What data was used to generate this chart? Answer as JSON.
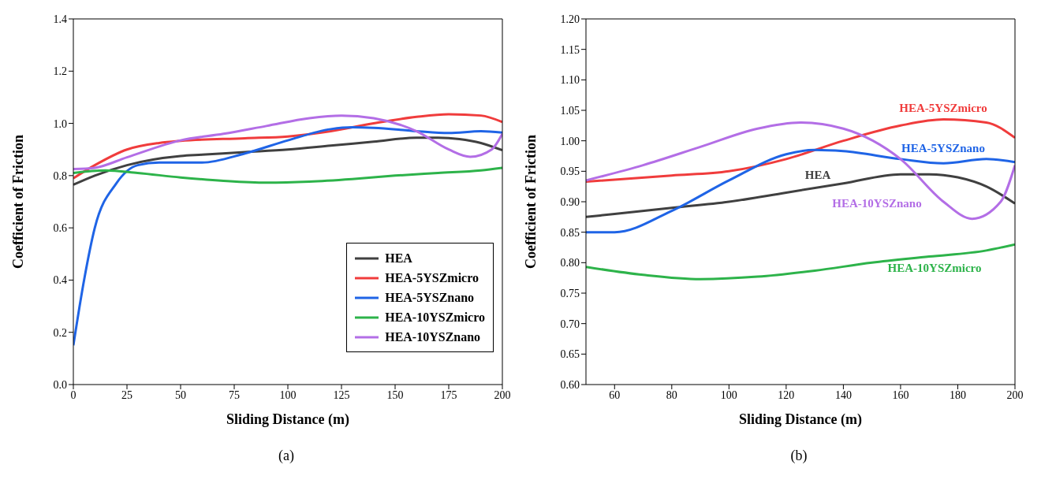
{
  "chart_data": [
    {
      "type": "line",
      "xlabel": "Sliding Distance (m)",
      "ylabel": "Coefficient of Friction",
      "xlim": [
        0,
        200
      ],
      "xticks": [
        0,
        25,
        50,
        75,
        100,
        125,
        150,
        175,
        200
      ],
      "ylim": [
        0,
        1.4
      ],
      "yticks": [
        {
          "value": 0,
          "label": "0.0"
        },
        0.2,
        0.4,
        0.6,
        0.8,
        {
          "value": 1,
          "label": "1.0"
        },
        1.2,
        1.4
      ],
      "grid": false,
      "legend": "bottom right",
      "annotations": [
        "(a)"
      ],
      "series": [
        {
          "name": "HEA",
          "color": "#404040",
          "x": [
            0,
            10,
            25,
            50,
            60,
            80,
            100,
            120,
            140,
            160,
            170,
            180,
            190,
            200
          ],
          "values": [
            0.765,
            0.8,
            0.84,
            0.875,
            0.88,
            0.89,
            0.9,
            0.915,
            0.93,
            0.945,
            0.945,
            0.94,
            0.925,
            0.897
          ]
        },
        {
          "name": "HEA-5YSZmicro",
          "color": "#f03c3c",
          "x": [
            0,
            10,
            25,
            40,
            50,
            80,
            100,
            120,
            140,
            160,
            175,
            190,
            200
          ],
          "values": [
            0.79,
            0.84,
            0.9,
            0.925,
            0.933,
            0.943,
            0.95,
            0.97,
            1.0,
            1.025,
            1.035,
            1.03,
            1.005
          ]
        },
        {
          "name": "HEA-5YSZnano",
          "color": "#1f64e6",
          "x": [
            0,
            5,
            10,
            20,
            30,
            40,
            50,
            60,
            80,
            100,
            120,
            130,
            140,
            160,
            175,
            190,
            200
          ],
          "values": [
            0.15,
            0.4,
            0.6,
            0.77,
            0.84,
            0.85,
            0.85,
            0.85,
            0.885,
            0.935,
            0.978,
            0.985,
            0.983,
            0.97,
            0.963,
            0.97,
            0.965
          ]
        },
        {
          "name": "HEA-10YSZmicro",
          "color": "#2db34a",
          "x": [
            0,
            15,
            30,
            50,
            70,
            90,
            110,
            130,
            150,
            170,
            190,
            200
          ],
          "values": [
            0.81,
            0.82,
            0.81,
            0.793,
            0.78,
            0.773,
            0.777,
            0.787,
            0.8,
            0.81,
            0.82,
            0.83
          ]
        },
        {
          "name": "HEA-10YSZnano",
          "color": "#b36ee6",
          "x": [
            0,
            10,
            25,
            50,
            70,
            90,
            110,
            125,
            140,
            160,
            175,
            185,
            195,
            200
          ],
          "values": [
            0.825,
            0.83,
            0.87,
            0.935,
            0.96,
            0.99,
            1.02,
            1.03,
            1.02,
            0.97,
            0.9,
            0.872,
            0.9,
            0.96
          ]
        }
      ]
    },
    {
      "type": "line",
      "xlabel": "Sliding Distance (m)",
      "ylabel": "Coefficient of Friction",
      "xlim": [
        50,
        200
      ],
      "xticks": [
        60,
        80,
        100,
        120,
        140,
        160,
        180,
        200
      ],
      "ylim": [
        0.6,
        1.2
      ],
      "yticks": [
        {
          "value": 0.6,
          "label": "0.60"
        },
        0.65,
        {
          "value": 0.7,
          "label": "0.70"
        },
        0.75,
        {
          "value": 0.8,
          "label": "0.80"
        },
        0.85,
        {
          "value": 0.9,
          "label": "0.90"
        },
        0.95,
        {
          "value": 1,
          "label": "1.00"
        },
        1.05,
        {
          "value": 1.1,
          "label": "1.10"
        },
        1.15,
        {
          "value": 1.2,
          "label": "1.20"
        }
      ],
      "grid": false,
      "annotations": [
        "(b)"
      ],
      "series": [
        {
          "name": "HEA",
          "color": "#404040",
          "x": [
            50,
            60,
            80,
            100,
            120,
            140,
            160,
            170,
            180,
            190,
            200
          ],
          "values": [
            0.875,
            0.88,
            0.89,
            0.9,
            0.915,
            0.93,
            0.945,
            0.945,
            0.94,
            0.925,
            0.897
          ]
        },
        {
          "name": "HEA-5YSZmicro",
          "color": "#f03c3c",
          "x": [
            50,
            80,
            100,
            120,
            140,
            160,
            175,
            190,
            200
          ],
          "values": [
            0.933,
            0.943,
            0.95,
            0.97,
            1.0,
            1.025,
            1.035,
            1.03,
            1.005
          ]
        },
        {
          "name": "HEA-5YSZnano",
          "color": "#1f64e6",
          "x": [
            50,
            60,
            80,
            100,
            120,
            130,
            140,
            160,
            175,
            190,
            200
          ],
          "values": [
            0.85,
            0.85,
            0.885,
            0.935,
            0.978,
            0.985,
            0.983,
            0.97,
            0.963,
            0.97,
            0.965
          ]
        },
        {
          "name": "HEA-10YSZmicro",
          "color": "#2db34a",
          "x": [
            50,
            70,
            90,
            110,
            130,
            150,
            170,
            190,
            200
          ],
          "values": [
            0.793,
            0.78,
            0.773,
            0.777,
            0.787,
            0.8,
            0.81,
            0.82,
            0.83
          ]
        },
        {
          "name": "HEA-10YSZnano",
          "color": "#b36ee6",
          "x": [
            50,
            70,
            90,
            110,
            125,
            140,
            160,
            175,
            185,
            195,
            200
          ],
          "values": [
            0.935,
            0.96,
            0.99,
            1.02,
            1.03,
            1.02,
            0.97,
            0.9,
            0.872,
            0.9,
            0.96
          ]
        }
      ]
    }
  ]
}
